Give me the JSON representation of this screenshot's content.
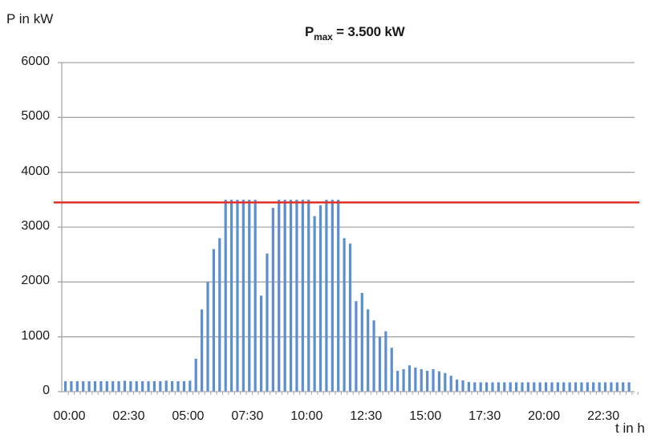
{
  "chart_data": {
    "type": "bar",
    "title": "Pmax = 3.500 kW",
    "title_parts": {
      "main": "P",
      "subscript": "max",
      "rest": " = 3.500 kW"
    },
    "xlabel": "t in h",
    "ylabel": "P in kW",
    "ylim": [
      0,
      6000
    ],
    "yticks": [
      0,
      1000,
      2000,
      3000,
      4000,
      5000,
      6000
    ],
    "xtick_labels": [
      "00:00",
      "02:30",
      "05:00",
      "07:30",
      "10:00",
      "12:30",
      "15:00",
      "17:30",
      "20:00",
      "22:30"
    ],
    "xtick_every_n_bars": 10,
    "interval_minutes": 15,
    "grid": {
      "horizontal": true,
      "vertical": false
    },
    "legend": null,
    "bar_color": "#5b8fd0",
    "reference_line": {
      "label": "Pmax",
      "value": 3450,
      "nominal_value": 3500,
      "color": "#e0312a"
    },
    "categories": [
      "00:00",
      "00:15",
      "00:30",
      "00:45",
      "01:00",
      "01:15",
      "01:30",
      "01:45",
      "02:00",
      "02:15",
      "02:30",
      "02:45",
      "03:00",
      "03:15",
      "03:30",
      "03:45",
      "04:00",
      "04:15",
      "04:30",
      "04:45",
      "05:00",
      "05:15",
      "05:30",
      "05:45",
      "06:00",
      "06:15",
      "06:30",
      "06:45",
      "07:00",
      "07:15",
      "07:30",
      "07:45",
      "08:00",
      "08:15",
      "08:30",
      "08:45",
      "09:00",
      "09:15",
      "09:30",
      "09:45",
      "10:00",
      "10:15",
      "10:30",
      "10:45",
      "11:00",
      "11:15",
      "11:30",
      "11:45",
      "12:00",
      "12:15",
      "12:30",
      "12:45",
      "13:00",
      "13:15",
      "13:30",
      "13:45",
      "14:00",
      "14:15",
      "14:30",
      "14:45",
      "15:00",
      "15:15",
      "15:30",
      "15:45",
      "16:00",
      "16:15",
      "16:30",
      "16:45",
      "17:00",
      "17:15",
      "17:30",
      "17:45",
      "18:00",
      "18:15",
      "18:30",
      "18:45",
      "19:00",
      "19:15",
      "19:30",
      "19:45",
      "20:00",
      "20:15",
      "20:30",
      "20:45",
      "21:00",
      "21:15",
      "21:30",
      "21:45",
      "22:00",
      "22:15",
      "22:30",
      "22:45",
      "23:00",
      "23:15",
      "23:30",
      "23:45"
    ],
    "values": [
      190,
      190,
      190,
      190,
      190,
      190,
      190,
      190,
      190,
      190,
      200,
      190,
      190,
      190,
      190,
      190,
      190,
      200,
      190,
      190,
      190,
      200,
      600,
      1500,
      2000,
      2600,
      2800,
      3500,
      3500,
      3500,
      3500,
      3500,
      3500,
      1750,
      2520,
      3350,
      3500,
      3500,
      3500,
      3500,
      3500,
      3500,
      3200,
      3400,
      3500,
      3500,
      3500,
      2800,
      2700,
      1650,
      1800,
      1500,
      1300,
      1000,
      1100,
      800,
      380,
      410,
      480,
      440,
      410,
      380,
      410,
      370,
      340,
      290,
      220,
      205,
      175,
      170,
      170,
      170,
      170,
      170,
      170,
      170,
      170,
      170,
      170,
      170,
      170,
      170,
      170,
      170,
      170,
      170,
      170,
      170,
      170,
      170,
      170,
      170,
      170,
      170,
      170,
      170
    ]
  }
}
